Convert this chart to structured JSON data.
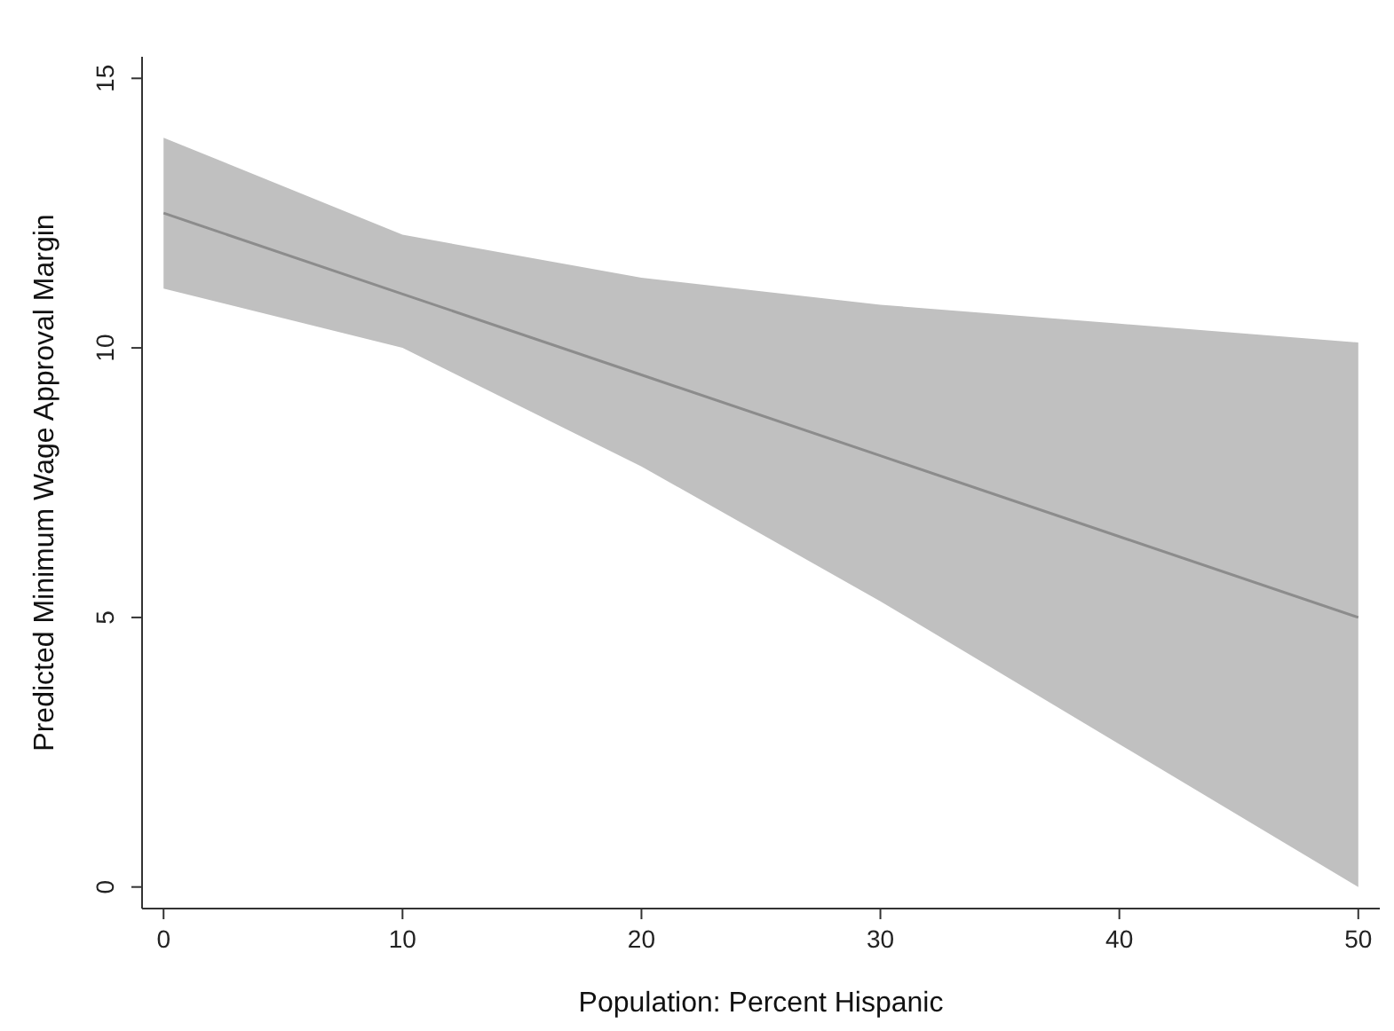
{
  "chart_data": {
    "type": "line",
    "xlabel": "Population: Percent Hispanic",
    "ylabel": "Predicted Minimum Wage Approval Margin",
    "x": [
      0,
      10,
      20,
      30,
      40,
      50
    ],
    "series": [
      {
        "color": "#8c8c8c",
        "values": [
          12.5,
          11.0,
          9.5,
          8.0,
          6.5,
          5.0
        ],
        "lower": [
          11.1,
          10.0,
          7.8,
          5.3,
          2.65,
          0.0
        ],
        "upper": [
          13.9,
          12.1,
          11.3,
          10.8,
          10.45,
          10.1
        ]
      }
    ],
    "xlim": [
      -0.9,
      50.9
    ],
    "xticks": [
      0,
      10,
      20,
      30,
      40,
      50
    ],
    "ylim": [
      -0.4,
      15.4
    ],
    "yticks": [
      0,
      5,
      10,
      15
    ],
    "grid": false,
    "legend": false,
    "marker": "none",
    "line_style": "solid"
  }
}
